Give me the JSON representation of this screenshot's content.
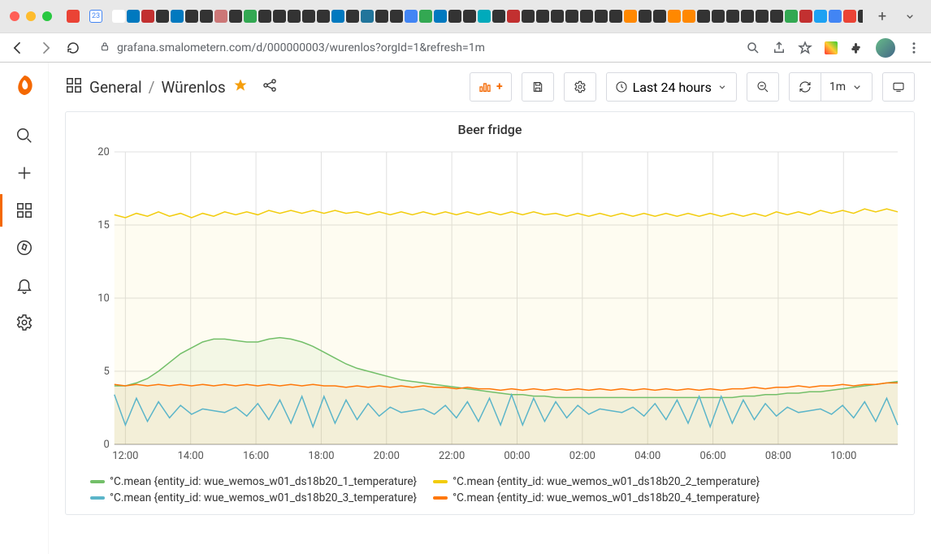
{
  "browser": {
    "url": "grafana.smalometern.com/d/000000003/wurenlos?orgId=1&refresh=1m",
    "traffic": [
      "#ff5f57",
      "#febc2e",
      "#28c840"
    ],
    "tabFavColors": [
      "#ea4335",
      "#4285f4",
      "#ffffff",
      "#0079bf",
      "#c23030",
      "#333",
      "#0079bf",
      "#333",
      "#333",
      "#c77",
      "#333",
      "#33a852",
      "#333",
      "#333",
      "#333",
      "#333",
      "#333",
      "#0079bf",
      "#333",
      "#21759b",
      "#333",
      "#333",
      "#4285f4",
      "#33a852",
      "#0079bf",
      "#333",
      "#333",
      "#0ab",
      "#333",
      "#c23030",
      "#333",
      "#333",
      "#333",
      "#333",
      "#333",
      "#333",
      "#333",
      "#f80",
      "#333",
      "#333",
      "#f80",
      "#f80",
      "#333",
      "#333",
      "#333",
      "#333",
      "#333",
      "#333",
      "#33a852",
      "#c23030",
      "#1da1f2",
      "#4285f4",
      "#ea4335",
      "#333",
      "#333",
      "#4285f4",
      "#333",
      "#333",
      "#333"
    ]
  },
  "sidebar": {
    "items": [
      {
        "name": "search-icon"
      },
      {
        "name": "plus-icon"
      },
      {
        "name": "dashboards-icon",
        "active": true
      },
      {
        "name": "explore-icon"
      },
      {
        "name": "alerting-icon"
      },
      {
        "name": "settings-icon"
      }
    ]
  },
  "toolbar": {
    "breadcrumb_root": "General",
    "breadcrumb_page": "Würenlos",
    "timerange": "Last 24 hours",
    "refresh_interval": "1m"
  },
  "panel": {
    "title": "Beer fridge",
    "chart": {
      "type": "line",
      "background_color": "#ffffff",
      "grid_color": "#e5e7eb",
      "ylim": [
        0,
        20
      ],
      "ytick_step": 5,
      "x_labels": [
        "12:00",
        "14:00",
        "16:00",
        "18:00",
        "20:00",
        "22:00",
        "00:00",
        "02:00",
        "04:00",
        "06:00",
        "08:00",
        "10:00"
      ],
      "x_points": 72,
      "series": [
        {
          "label": "°C.mean {entity_id: wue_wemos_w01_ds18b20_1_temperature}",
          "color": "#73bf69",
          "fill_opacity": 0.08,
          "data": [
            4.0,
            4.0,
            4.2,
            4.5,
            5.0,
            5.6,
            6.2,
            6.6,
            7.0,
            7.2,
            7.2,
            7.1,
            7.0,
            7.0,
            7.2,
            7.3,
            7.2,
            7.0,
            6.7,
            6.3,
            5.9,
            5.5,
            5.2,
            5.0,
            4.8,
            4.6,
            4.4,
            4.3,
            4.2,
            4.1,
            4.0,
            3.9,
            3.8,
            3.7,
            3.6,
            3.5,
            3.4,
            3.4,
            3.3,
            3.3,
            3.2,
            3.2,
            3.2,
            3.2,
            3.2,
            3.2,
            3.2,
            3.2,
            3.2,
            3.2,
            3.2,
            3.2,
            3.2,
            3.2,
            3.2,
            3.2,
            3.2,
            3.3,
            3.3,
            3.4,
            3.4,
            3.5,
            3.5,
            3.6,
            3.6,
            3.7,
            3.8,
            3.9,
            4.0,
            4.1,
            4.2,
            4.3
          ]
        },
        {
          "label": "°C.mean {entity_id: wue_wemos_w01_ds18b20_2_temperature}",
          "color": "#f2cc0c",
          "fill_opacity": 0.06,
          "data": [
            15.7,
            15.5,
            15.8,
            15.6,
            15.9,
            15.6,
            15.8,
            15.5,
            15.8,
            15.6,
            15.9,
            15.7,
            15.9,
            15.7,
            16.0,
            15.8,
            16.0,
            15.8,
            16.0,
            15.8,
            16.0,
            15.8,
            15.9,
            15.7,
            15.9,
            15.7,
            15.9,
            15.7,
            15.9,
            15.7,
            15.9,
            15.7,
            15.9,
            15.7,
            15.9,
            15.7,
            15.9,
            15.7,
            15.9,
            15.7,
            15.8,
            15.6,
            15.8,
            15.6,
            15.8,
            15.6,
            15.8,
            15.6,
            15.8,
            15.6,
            15.8,
            15.6,
            15.8,
            15.6,
            15.8,
            15.6,
            15.8,
            15.6,
            15.8,
            15.6,
            15.9,
            15.7,
            15.9,
            15.7,
            16.0,
            15.8,
            16.0,
            15.8,
            16.1,
            15.9,
            16.1,
            15.9
          ]
        },
        {
          "label": "°C.mean {entity_id: wue_wemos_w01_ds18b20_3_temperature}",
          "color": "#5bb5c9",
          "fill_opacity": 0.0,
          "oscillate": true,
          "osc_low": 1.2,
          "osc_high": 3.4,
          "osc_cycles": 34
        },
        {
          "label": "°C.mean {entity_id: wue_wemos_w01_ds18b20_4_temperature}",
          "color": "#ff780a",
          "fill_opacity": 0.06,
          "data": [
            4.1,
            4.0,
            4.1,
            4.0,
            4.1,
            4.0,
            4.1,
            4.0,
            4.1,
            4.0,
            4.1,
            4.0,
            4.1,
            4.0,
            4.1,
            4.0,
            4.1,
            4.0,
            4.1,
            4.0,
            4.0,
            3.9,
            4.0,
            3.9,
            4.0,
            3.9,
            4.0,
            3.9,
            4.0,
            3.9,
            3.9,
            3.8,
            3.9,
            3.8,
            3.8,
            3.7,
            3.8,
            3.7,
            3.8,
            3.7,
            3.8,
            3.7,
            3.8,
            3.7,
            3.8,
            3.7,
            3.8,
            3.7,
            3.8,
            3.7,
            3.8,
            3.7,
            3.8,
            3.7,
            3.8,
            3.7,
            3.8,
            3.8,
            3.9,
            3.8,
            3.9,
            3.9,
            4.0,
            3.9,
            4.0,
            4.0,
            4.1,
            4.0,
            4.1,
            4.1,
            4.2,
            4.2
          ]
        }
      ]
    }
  }
}
